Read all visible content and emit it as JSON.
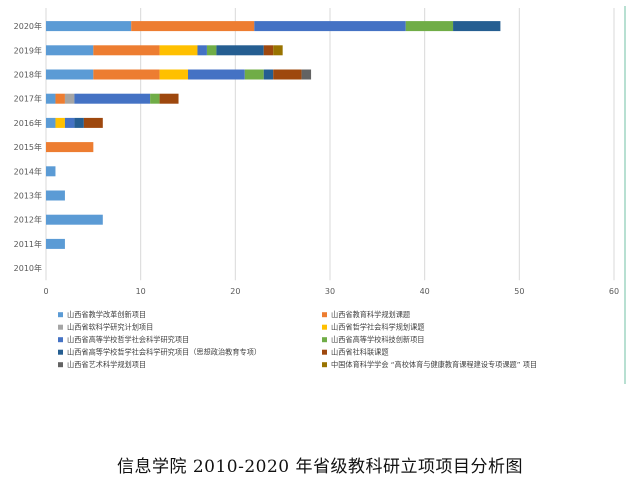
{
  "caption": "信息学院 2010-2020 年省级教科研立项项目分析图",
  "chart_data": {
    "type": "bar",
    "orientation": "horizontal",
    "stacked": true,
    "categories": [
      "2020年",
      "2019年",
      "2018年",
      "2017年",
      "2016年",
      "2015年",
      "2014年",
      "2013年",
      "2012年",
      "2011年",
      "2010年"
    ],
    "xlim": [
      0,
      60
    ],
    "xticks": [
      0,
      10,
      20,
      30,
      40,
      50,
      60
    ],
    "grid": true,
    "legend_position": "bottom",
    "series": [
      {
        "name": "山西省教学改革创新项目",
        "color": "#5b9bd5",
        "values": [
          9,
          5,
          5,
          1,
          1,
          0,
          1,
          2,
          6,
          2,
          0
        ]
      },
      {
        "name": "山西省教育科学规划课题",
        "color": "#ed7d31",
        "values": [
          13,
          7,
          7,
          1,
          0,
          5,
          0,
          0,
          0,
          0,
          0
        ]
      },
      {
        "name": "山西省软科学研究计划项目",
        "color": "#a5a5a5",
        "values": [
          0,
          0,
          0,
          1,
          0,
          0,
          0,
          0,
          0,
          0,
          0
        ]
      },
      {
        "name": "山西省哲学社会科学规划课题",
        "color": "#ffc000",
        "values": [
          0,
          4,
          3,
          0,
          1,
          0,
          0,
          0,
          0,
          0,
          0
        ]
      },
      {
        "name": "山西省高等学校哲学社会科学研究项目",
        "color": "#4472c4",
        "values": [
          16,
          1,
          6,
          8,
          1,
          0,
          0,
          0,
          0,
          0,
          0
        ]
      },
      {
        "name": "山西省高等学校科技创新项目",
        "color": "#70ad47",
        "values": [
          5,
          1,
          2,
          1,
          0,
          0,
          0,
          0,
          0,
          0,
          0
        ]
      },
      {
        "name": "山西省高等学校哲学社会科学研究项目（思想政治教育专项）",
        "color": "#255e91",
        "values": [
          5,
          5,
          1,
          0,
          1,
          0,
          0,
          0,
          0,
          0,
          0
        ]
      },
      {
        "name": "山西省社科联课题",
        "color": "#9e480e",
        "values": [
          0,
          1,
          3,
          2,
          2,
          0,
          0,
          0,
          0,
          0,
          0
        ]
      },
      {
        "name": "山西省艺术科学规划项目",
        "color": "#636363",
        "values": [
          0,
          0,
          1,
          0,
          0,
          0,
          0,
          0,
          0,
          0,
          0
        ]
      },
      {
        "name": "中国体育科学学会 “高校体育与健康教育课程建设专项课题” 项目",
        "color": "#997300",
        "values": [
          0,
          1,
          0,
          0,
          0,
          0,
          0,
          0,
          0,
          0,
          0
        ]
      }
    ]
  }
}
